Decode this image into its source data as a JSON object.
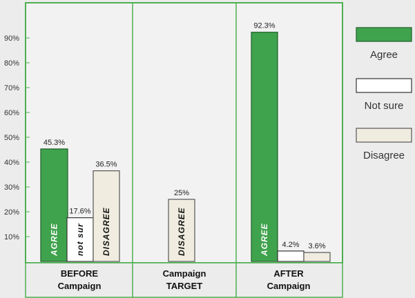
{
  "chart_data": {
    "type": "bar",
    "ylim": [
      0,
      100
    ],
    "y_ticks": [
      "10%",
      "20%",
      "30%",
      "40%",
      "50%",
      "60%",
      "70%",
      "80%",
      "90%"
    ],
    "y_tick_values": [
      10,
      20,
      30,
      40,
      50,
      60,
      70,
      80,
      90
    ],
    "grid": false,
    "legend_position": "right",
    "groups": [
      {
        "label_lines": [
          "BEFORE",
          "Campaign"
        ],
        "bars": [
          {
            "series": "Agree",
            "value": 45.3,
            "label": "45.3%",
            "inner_text": "AGREE"
          },
          {
            "series": "Not sure",
            "value": 17.6,
            "label": "17.6%",
            "inner_text": "not sur"
          },
          {
            "series": "Disagree",
            "value": 36.5,
            "label": "36.5%",
            "inner_text": "DISAGREE"
          }
        ]
      },
      {
        "label_lines": [
          "Campaign",
          "TARGET"
        ],
        "bars": [
          {
            "series": "Disagree",
            "value": 25,
            "label": "25%",
            "inner_text": "DISAGREE"
          }
        ]
      },
      {
        "label_lines": [
          "AFTER",
          "Campaign"
        ],
        "bars": [
          {
            "series": "Agree",
            "value": 92.3,
            "label": "",
            "inner_text": "AGREE"
          },
          {
            "series": "Not sure",
            "value": 4.2,
            "label": "4.2%",
            "inner_text": ""
          },
          {
            "series": "Disagree",
            "value": 3.6,
            "label": "3.6%",
            "inner_text": ""
          }
        ]
      }
    ],
    "top_label": "92.3%",
    "series": [
      {
        "name": "Agree",
        "color": "#3fa34d"
      },
      {
        "name": "Not sure",
        "color": "#ffffff"
      },
      {
        "name": "Disagree",
        "color": "#f0ede0"
      }
    ]
  }
}
